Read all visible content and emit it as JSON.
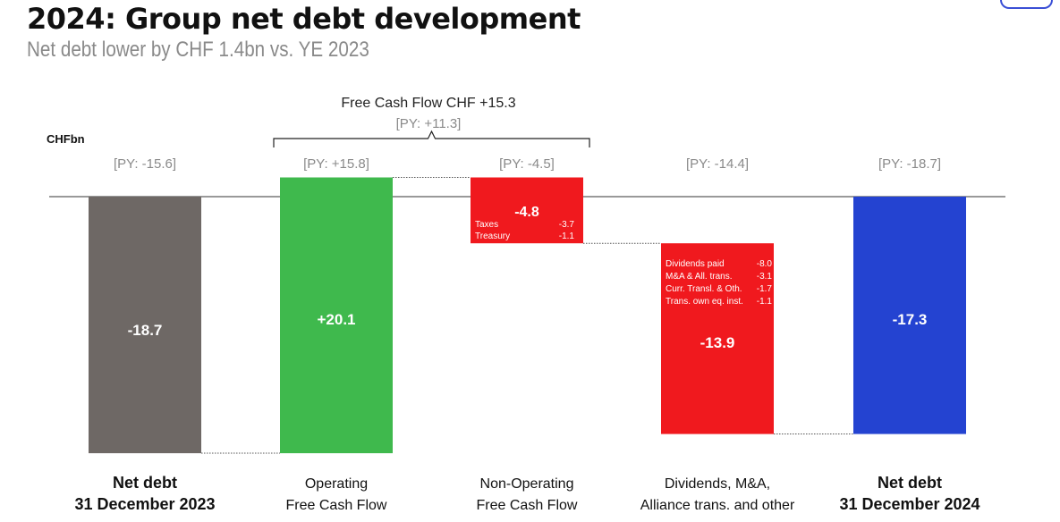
{
  "header": {
    "title": "2024: Group net debt development",
    "subtitle": "Net debt lower by CHF 1.4bn vs. YE 2023"
  },
  "chart_data": {
    "type": "waterfall",
    "title": "2024: Group net debt development",
    "subtitle": "Net debt lower by CHF 1.4bn vs. YE 2023",
    "unit_label": "CHFbn",
    "bracket": {
      "label": "Free Cash Flow CHF +15.3",
      "py": "[PY: +11.3]"
    },
    "colors": {
      "net_debt_2023": "#6e6865",
      "operating": "#3fb94d",
      "negative": "#f0191e",
      "net_debt_2024": "#2443d1",
      "py": "#8a8a8a",
      "baseline": "#333333"
    },
    "steps": [
      {
        "key": "net_debt_2023",
        "label_lines": [
          "Net debt",
          "31 December 2023"
        ],
        "label_bold": true,
        "value": -18.7,
        "value_label": "-18.7",
        "start": 0,
        "end": -18.7,
        "py": "[PY: -15.6]",
        "color_key": "net_debt_2023"
      },
      {
        "key": "operating_fcf",
        "label_lines": [
          "Operating",
          "Free Cash Flow"
        ],
        "label_bold": false,
        "value": 20.1,
        "value_label": "+20.1",
        "start": -18.7,
        "end": 1.4,
        "py": "[PY: +15.8]",
        "color_key": "operating"
      },
      {
        "key": "non_operating_fcf",
        "label_lines": [
          "Non-Operating",
          "Free Cash Flow"
        ],
        "label_bold": false,
        "value": -4.8,
        "value_label": "-4.8",
        "start": 1.4,
        "end": -3.4,
        "py": "[PY: -4.5]",
        "color_key": "negative",
        "breakdown": [
          {
            "label": "Taxes",
            "value": "-3.7"
          },
          {
            "label": "Treasury",
            "value": "-1.1"
          }
        ]
      },
      {
        "key": "dividends_ma",
        "label_lines": [
          "Dividends, M&A,",
          "Alliance trans. and other"
        ],
        "label_bold": false,
        "value": -13.9,
        "value_label": "-13.9",
        "start": -3.4,
        "end": -17.3,
        "py": "[PY: -14.4]",
        "color_key": "negative",
        "breakdown": [
          {
            "label": "Dividends paid",
            "value": "-8.0"
          },
          {
            "label": "M&A & All. trans.",
            "value": "-3.1"
          },
          {
            "label": "Curr. Transl. & Oth.",
            "value": "-1.7"
          },
          {
            "label": "Trans. own eq. inst.",
            "value": "-1.1"
          }
        ]
      },
      {
        "key": "net_debt_2024",
        "label_lines": [
          "Net debt",
          "31 December 2024"
        ],
        "label_bold": true,
        "value": -17.3,
        "value_label": "-17.3",
        "start": 0,
        "end": -17.3,
        "py": "[PY: -18.7]",
        "color_key": "net_debt_2024"
      }
    ]
  }
}
